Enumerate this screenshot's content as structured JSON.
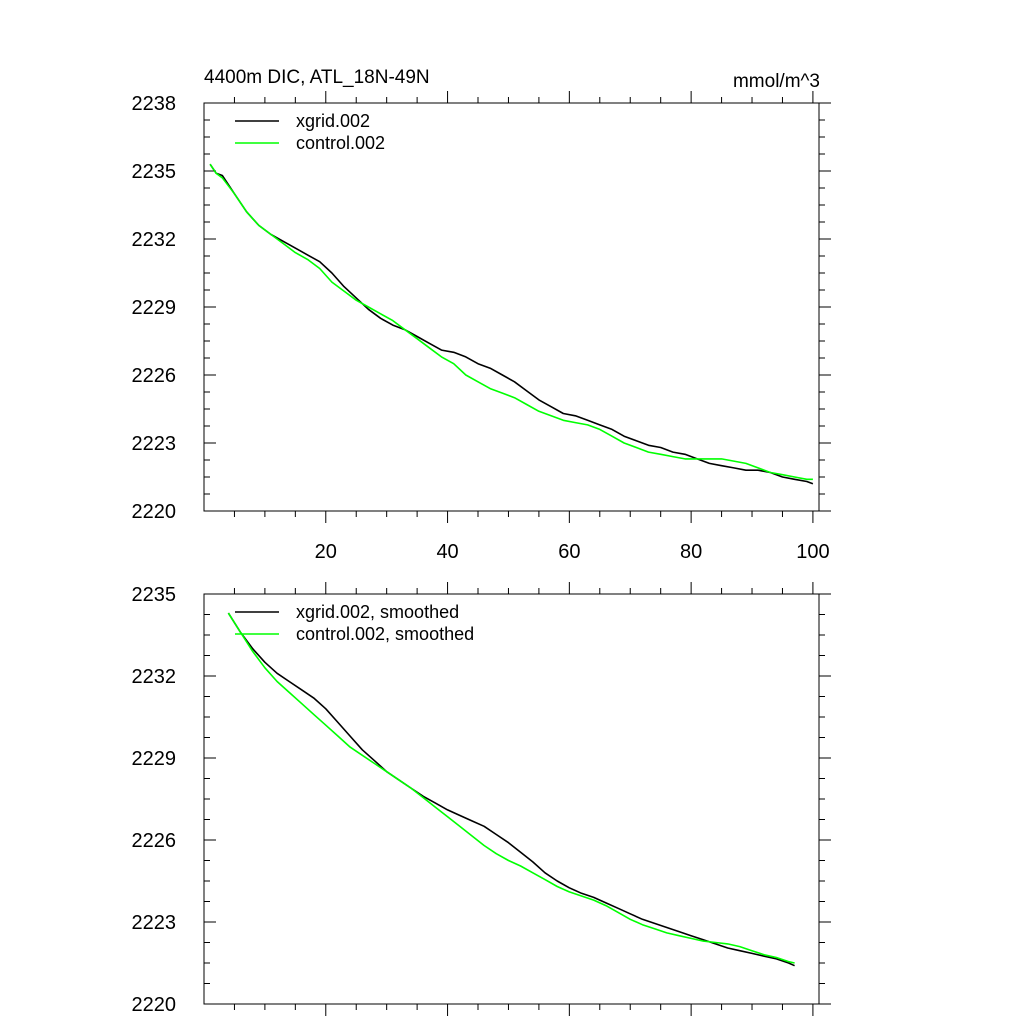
{
  "chart_data": [
    {
      "type": "line",
      "title": "4400m DIC, ATL_18N-49N",
      "units": "mmol/m^3",
      "xlabel": "",
      "ylabel": "",
      "xlim": [
        0,
        101
      ],
      "ylim": [
        2220,
        2238
      ],
      "x_ticks": [
        20,
        40,
        60,
        80,
        100
      ],
      "x_tick_labels": [
        "20",
        "40",
        "60",
        "80",
        "100"
      ],
      "y_ticks": [
        2220,
        2223,
        2226,
        2229,
        2232,
        2235,
        2238
      ],
      "y_tick_labels": [
        "2220",
        "2223",
        "2226",
        "2229",
        "2232",
        "2235",
        "2238"
      ],
      "legend_position": "top-left",
      "series": [
        {
          "name": "xgrid.002",
          "color": "#000000",
          "x": [
            1,
            2,
            3,
            5,
            7,
            9,
            11,
            13,
            15,
            17,
            19,
            21,
            23,
            25,
            27,
            29,
            31,
            33,
            35,
            37,
            39,
            41,
            43,
            45,
            47,
            49,
            51,
            53,
            55,
            57,
            59,
            61,
            63,
            65,
            67,
            69,
            71,
            73,
            75,
            77,
            79,
            81,
            83,
            85,
            87,
            89,
            91,
            93,
            95,
            97,
            99,
            100
          ],
          "y": [
            2235.3,
            2234.9,
            2234.8,
            2234.0,
            2233.2,
            2232.6,
            2232.2,
            2231.9,
            2231.6,
            2231.3,
            2231.0,
            2230.5,
            2229.9,
            2229.4,
            2228.9,
            2228.5,
            2228.2,
            2228.0,
            2227.7,
            2227.4,
            2227.1,
            2227.0,
            2226.8,
            2226.5,
            2226.3,
            2226.0,
            2225.7,
            2225.3,
            2224.9,
            2224.6,
            2224.3,
            2224.2,
            2224.0,
            2223.8,
            2223.6,
            2223.3,
            2223.1,
            2222.9,
            2222.8,
            2222.6,
            2222.5,
            2222.3,
            2222.1,
            2222.0,
            2221.9,
            2221.8,
            2221.8,
            2221.7,
            2221.5,
            2221.4,
            2221.3,
            2221.2
          ]
        },
        {
          "name": "control.002",
          "color": "#00ff00",
          "x": [
            1,
            2,
            3,
            5,
            7,
            9,
            11,
            13,
            15,
            17,
            19,
            21,
            23,
            25,
            27,
            29,
            31,
            33,
            35,
            37,
            39,
            41,
            43,
            45,
            47,
            49,
            51,
            53,
            55,
            57,
            59,
            61,
            63,
            65,
            67,
            69,
            71,
            73,
            75,
            77,
            79,
            81,
            83,
            85,
            87,
            89,
            91,
            93,
            95,
            97,
            99,
            100
          ],
          "y": [
            2235.3,
            2234.9,
            2234.7,
            2234.0,
            2233.2,
            2232.6,
            2232.2,
            2231.8,
            2231.4,
            2231.1,
            2230.7,
            2230.1,
            2229.7,
            2229.3,
            2229.0,
            2228.7,
            2228.4,
            2228.0,
            2227.6,
            2227.2,
            2226.8,
            2226.5,
            2226.0,
            2225.7,
            2225.4,
            2225.2,
            2225.0,
            2224.7,
            2224.4,
            2224.2,
            2224.0,
            2223.9,
            2223.8,
            2223.6,
            2223.3,
            2223.0,
            2222.8,
            2222.6,
            2222.5,
            2222.4,
            2222.3,
            2222.3,
            2222.3,
            2222.3,
            2222.2,
            2222.1,
            2221.9,
            2221.7,
            2221.6,
            2221.5,
            2221.4,
            2221.4
          ]
        }
      ]
    },
    {
      "type": "line",
      "title": "",
      "xlabel": "",
      "ylabel": "",
      "xlim": [
        0,
        101
      ],
      "ylim": [
        2220,
        2235
      ],
      "x_ticks": [
        20,
        40,
        60,
        80,
        100
      ],
      "x_tick_labels": [],
      "y_ticks": [
        2220,
        2223,
        2226,
        2229,
        2232,
        2235
      ],
      "y_tick_labels": [
        "2220",
        "2223",
        "2226",
        "2229",
        "2232",
        "2235"
      ],
      "legend_position": "top-left",
      "series": [
        {
          "name": "xgrid.002, smoothed",
          "color": "#000000",
          "x": [
            4,
            6,
            8,
            10,
            12,
            14,
            16,
            18,
            20,
            22,
            24,
            26,
            28,
            30,
            32,
            34,
            36,
            38,
            40,
            42,
            44,
            46,
            48,
            50,
            52,
            54,
            56,
            58,
            60,
            62,
            64,
            66,
            68,
            70,
            72,
            74,
            76,
            78,
            80,
            82,
            84,
            86,
            88,
            90,
            92,
            94,
            96,
            97
          ],
          "y": [
            2234.3,
            2233.6,
            2233.0,
            2232.5,
            2232.1,
            2231.8,
            2231.5,
            2231.2,
            2230.8,
            2230.3,
            2229.8,
            2229.3,
            2228.9,
            2228.5,
            2228.2,
            2227.9,
            2227.6,
            2227.35,
            2227.1,
            2226.9,
            2226.7,
            2226.5,
            2226.2,
            2225.9,
            2225.55,
            2225.2,
            2224.8,
            2224.5,
            2224.25,
            2224.05,
            2223.9,
            2223.7,
            2223.5,
            2223.3,
            2223.1,
            2222.95,
            2222.8,
            2222.65,
            2222.5,
            2222.35,
            2222.2,
            2222.05,
            2221.95,
            2221.85,
            2221.75,
            2221.65,
            2221.5,
            2221.4
          ]
        },
        {
          "name": "control.002, smoothed",
          "color": "#00ff00",
          "x": [
            4,
            6,
            8,
            10,
            12,
            14,
            16,
            18,
            20,
            22,
            24,
            26,
            28,
            30,
            32,
            34,
            36,
            38,
            40,
            42,
            44,
            46,
            48,
            50,
            52,
            54,
            56,
            58,
            60,
            62,
            64,
            66,
            68,
            70,
            72,
            74,
            76,
            78,
            80,
            82,
            84,
            86,
            88,
            90,
            92,
            94,
            96,
            97
          ],
          "y": [
            2234.3,
            2233.6,
            2232.9,
            2232.3,
            2231.8,
            2231.4,
            2231.0,
            2230.6,
            2230.2,
            2229.8,
            2229.4,
            2229.1,
            2228.8,
            2228.5,
            2228.2,
            2227.9,
            2227.55,
            2227.2,
            2226.85,
            2226.5,
            2226.15,
            2225.8,
            2225.5,
            2225.25,
            2225.05,
            2224.8,
            2224.55,
            2224.3,
            2224.1,
            2223.95,
            2223.8,
            2223.6,
            2223.35,
            2223.1,
            2222.9,
            2222.75,
            2222.6,
            2222.5,
            2222.4,
            2222.3,
            2222.25,
            2222.2,
            2222.1,
            2221.95,
            2221.8,
            2221.7,
            2221.55,
            2221.5
          ]
        }
      ]
    }
  ]
}
